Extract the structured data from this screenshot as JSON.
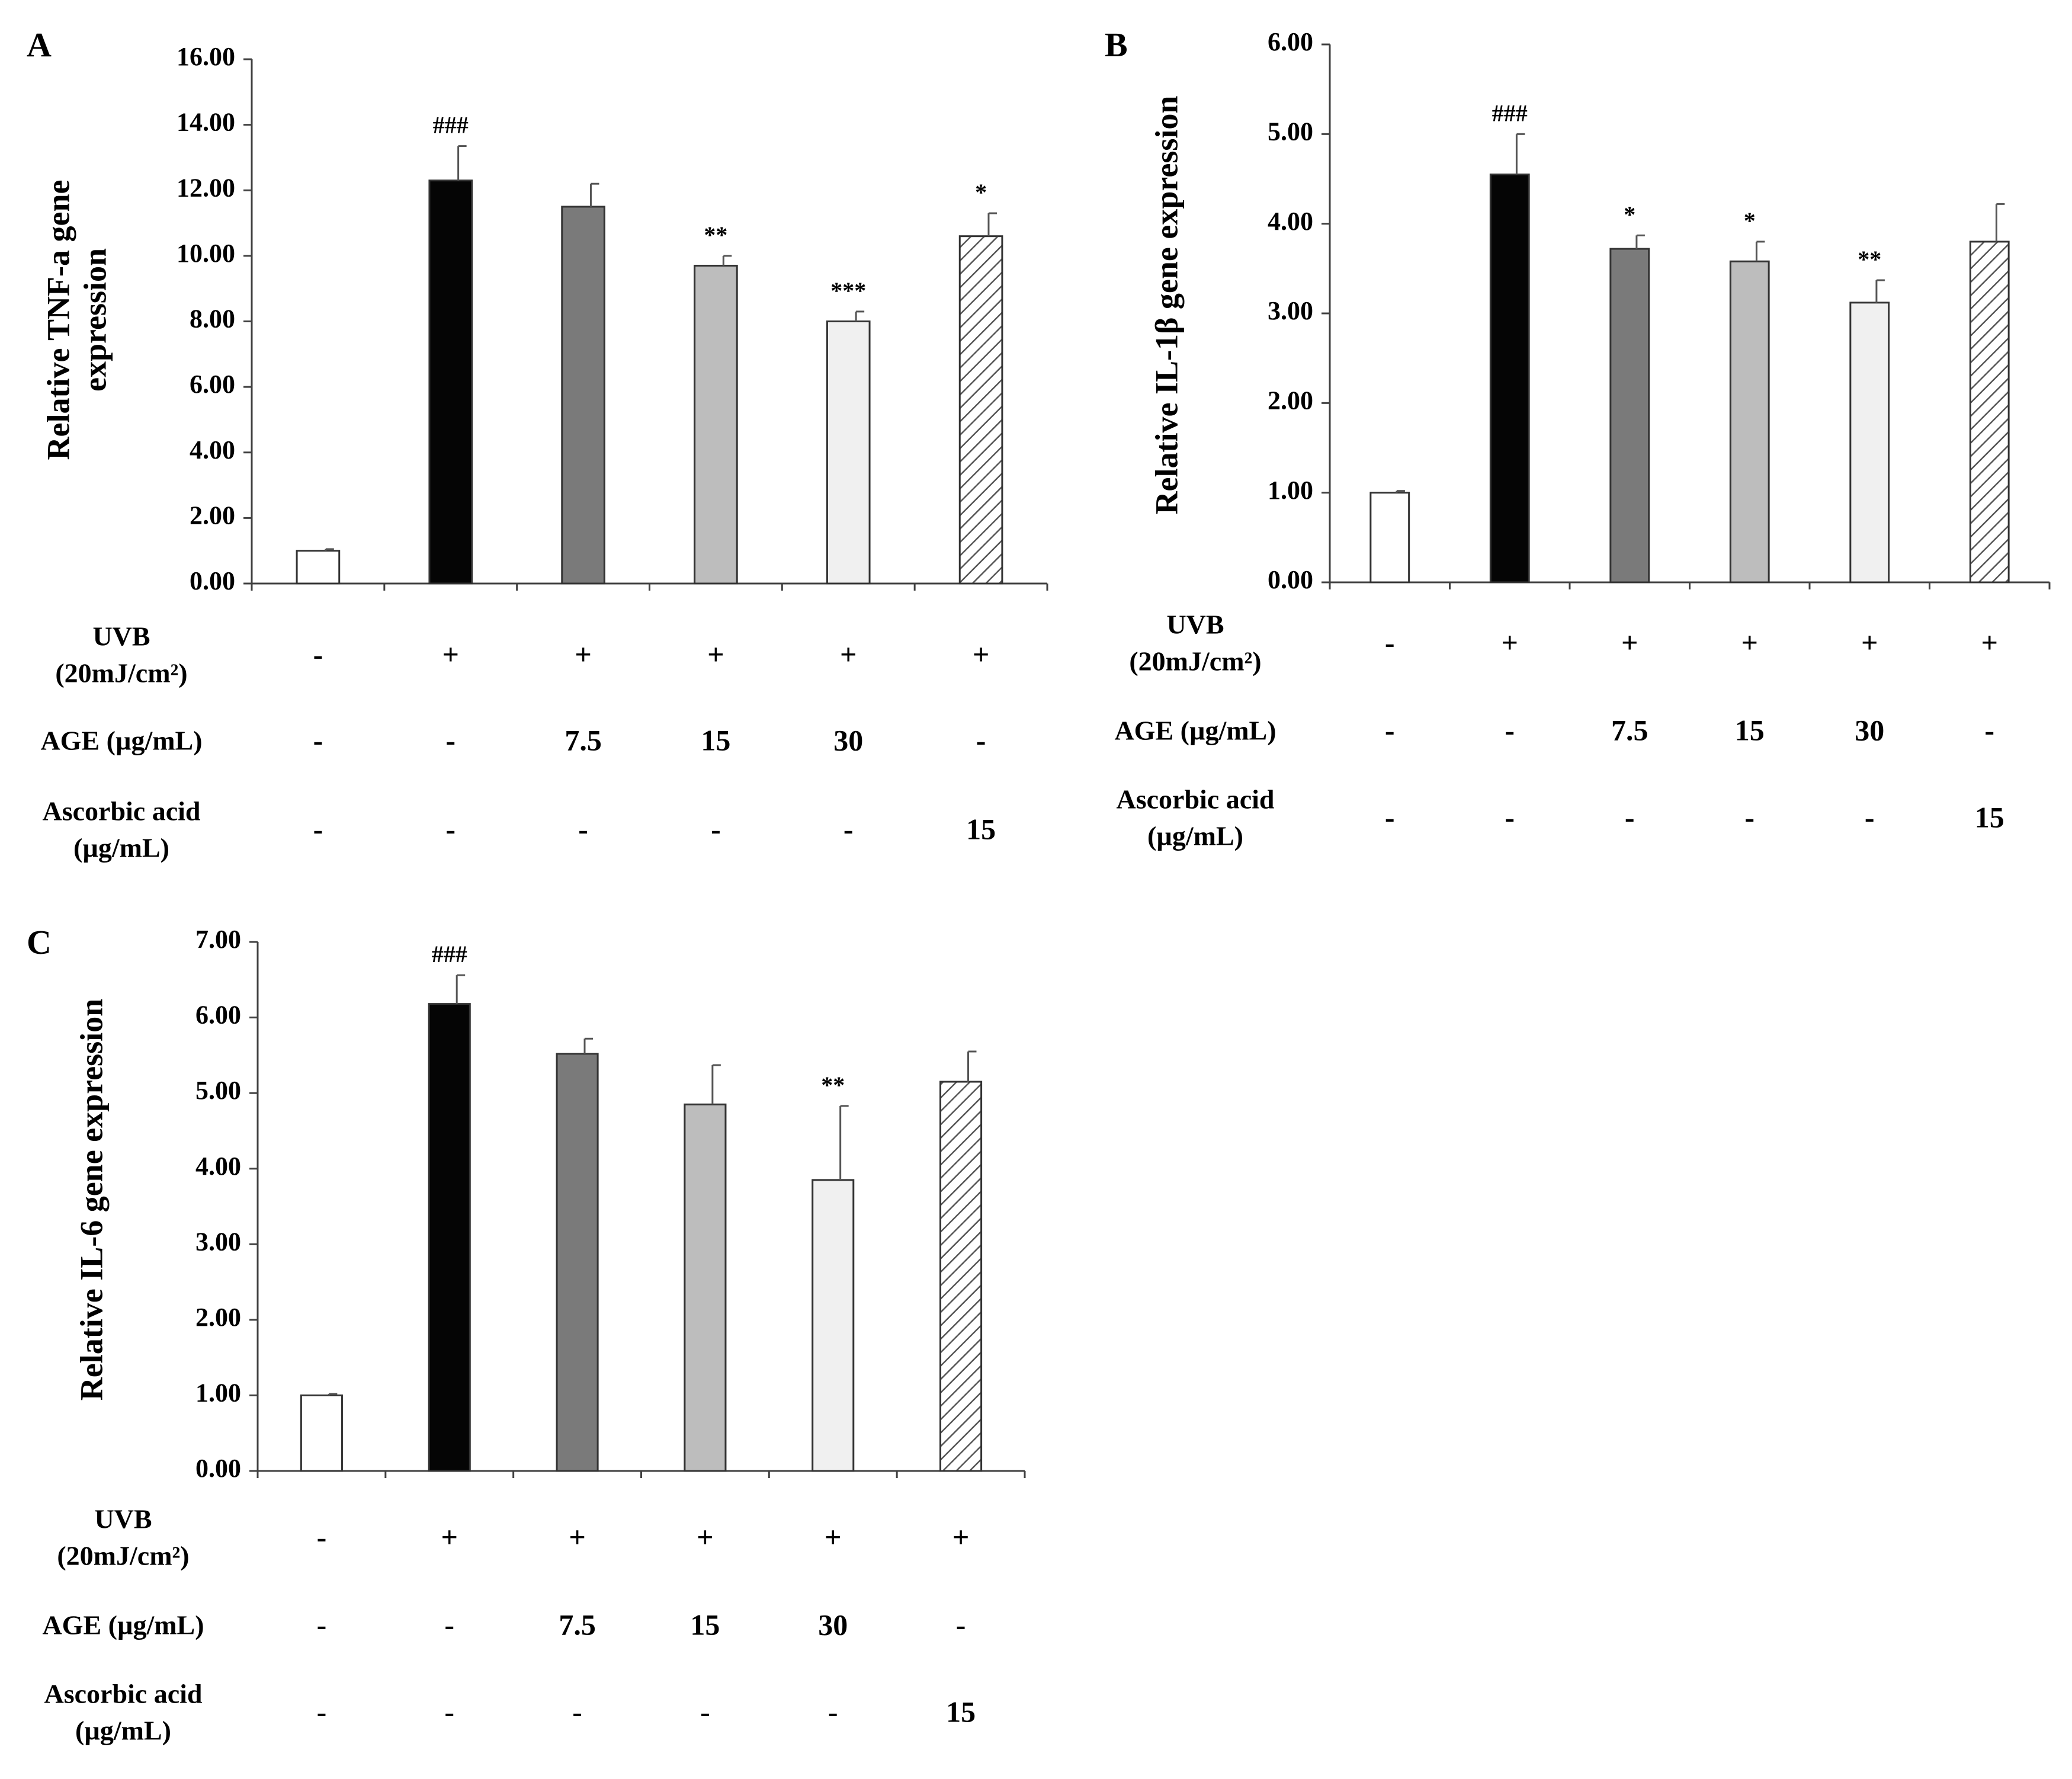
{
  "chart_data": [
    {
      "id": "A",
      "type": "bar",
      "panel_label": "A",
      "ylabel_lines": [
        "Relative TNF-a gene",
        "expression"
      ],
      "ylim": [
        0,
        16
      ],
      "yticks": [
        "0.00",
        "2.00",
        "4.00",
        "6.00",
        "8.00",
        "10.00",
        "12.00",
        "14.00",
        "16.00"
      ],
      "values": [
        1.0,
        12.3,
        11.5,
        9.7,
        8.0,
        10.6
      ],
      "errors": [
        0.05,
        1.05,
        0.7,
        0.3,
        0.3,
        0.7
      ],
      "annotations": [
        "",
        "###",
        "",
        "**",
        "***",
        "*"
      ],
      "fills": [
        "white",
        "black",
        "dark-gray",
        "light-gray",
        "lightest-gray",
        "hatched"
      ],
      "conditions": [
        {
          "label_lines": [
            "UVB",
            "(20mJ/cm²)"
          ],
          "values": [
            "-",
            "+",
            "+",
            "+",
            "+",
            "+"
          ]
        },
        {
          "label_lines": [
            "AGE (µg/mL)"
          ],
          "values": [
            "-",
            "-",
            "7.5",
            "15",
            "30",
            "-"
          ]
        },
        {
          "label_lines": [
            "Ascorbic acid",
            "(µg/mL)"
          ],
          "values": [
            "-",
            "-",
            "-",
            "-",
            "-",
            "15"
          ]
        }
      ]
    },
    {
      "id": "B",
      "type": "bar",
      "panel_label": "B",
      "ylabel_lines": [
        "Relative IL-1β gene expression"
      ],
      "ylim": [
        0,
        6
      ],
      "yticks": [
        "0.00",
        "1.00",
        "2.00",
        "3.00",
        "4.00",
        "5.00",
        "6.00"
      ],
      "values": [
        1.0,
        4.55,
        3.72,
        3.58,
        3.12,
        3.8
      ],
      "errors": [
        0.02,
        0.45,
        0.15,
        0.22,
        0.25,
        0.42
      ],
      "annotations": [
        "",
        "###",
        "*",
        "*",
        "**",
        ""
      ],
      "fills": [
        "white",
        "black",
        "dark-gray",
        "light-gray",
        "lightest-gray",
        "hatched"
      ],
      "conditions": [
        {
          "label_lines": [
            "UVB",
            "(20mJ/cm²)"
          ],
          "values": [
            "-",
            "+",
            "+",
            "+",
            "+",
            "+"
          ]
        },
        {
          "label_lines": [
            "AGE (µg/mL)"
          ],
          "values": [
            "-",
            "-",
            "7.5",
            "15",
            "30",
            "-"
          ]
        },
        {
          "label_lines": [
            "Ascorbic acid",
            "(µg/mL)"
          ],
          "values": [
            "-",
            "-",
            "-",
            "-",
            "-",
            "15"
          ]
        }
      ]
    },
    {
      "id": "C",
      "type": "bar",
      "panel_label": "C",
      "ylabel_lines": [
        "Relative IL-6  gene expression"
      ],
      "ylim": [
        0,
        7
      ],
      "yticks": [
        "0.00",
        "1.00",
        "2.00",
        "3.00",
        "4.00",
        "5.00",
        "6.00",
        "7.00"
      ],
      "values": [
        1.0,
        6.18,
        5.52,
        4.85,
        3.85,
        5.15
      ],
      "errors": [
        0.02,
        0.38,
        0.2,
        0.52,
        0.98,
        0.4
      ],
      "annotations": [
        "",
        "###",
        "",
        "",
        "**",
        ""
      ],
      "fills": [
        "white",
        "black",
        "dark-gray",
        "light-gray",
        "lightest-gray",
        "hatched"
      ],
      "conditions": [
        {
          "label_lines": [
            "UVB",
            "(20mJ/cm²)"
          ],
          "values": [
            "-",
            "+",
            "+",
            "+",
            "+",
            "+"
          ]
        },
        {
          "label_lines": [
            "AGE (µg/mL)"
          ],
          "values": [
            "-",
            "-",
            "7.5",
            "15",
            "30",
            "-"
          ]
        },
        {
          "label_lines": [
            "Ascorbic acid",
            "(µg/mL)"
          ],
          "values": [
            "-",
            "-",
            "-",
            "-",
            "-",
            "15"
          ]
        }
      ]
    }
  ],
  "colors": {
    "white": "#ffffff",
    "black": "#050505",
    "dark-gray": "#7a7a7a",
    "light-gray": "#bdbdbd",
    "lightest-gray": "#f0f0f0",
    "hatch-line": "#555555",
    "stroke": "#333333"
  }
}
